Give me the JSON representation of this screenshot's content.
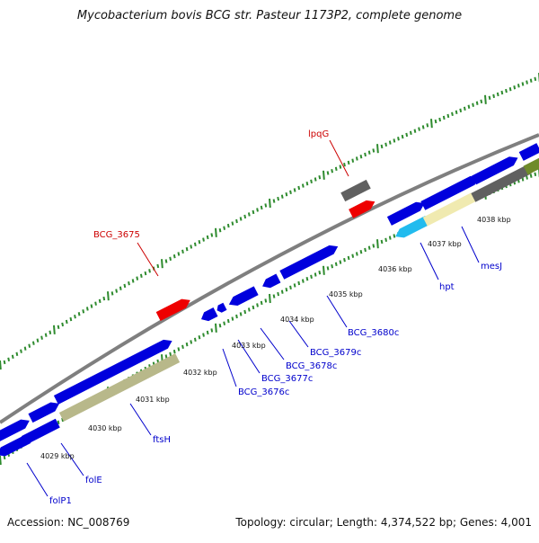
{
  "title": "Mycobacterium bovis BCG str. Pasteur 1173P2, complete genome",
  "footer": {
    "accession": "Accession: NC_008769",
    "summary": "Topology: circular; Length: 4,374,522 bp; Genes: 4,001"
  },
  "colors": {
    "backbone": "#7f7f7f",
    "gene_blue": "#0000dd",
    "gene_red": "#ee0000",
    "gene_gray": "#606060",
    "gene_cyan": "#22bbee",
    "gene_khaki": "#b8b88a",
    "gene_pale": "#f0eab0",
    "gene_olive": "#6e8b2a",
    "tick_green": "#2e8b2e",
    "label_blue": "#0000cc",
    "label_red": "#cc0000"
  },
  "ticks": [
    "4029 kbp",
    "4030 kbp",
    "4031 kbp",
    "4032 kbp",
    "4033 kbp",
    "4034 kbp",
    "4035 kbp",
    "4036 kbp",
    "4037 kbp",
    "4038 kbp"
  ],
  "labels": {
    "lpqG": "lpqG",
    "BCG_3675": "BCG_3675",
    "hpt": "hpt",
    "mesJ": "mesJ",
    "BCG_3680c": "BCG_3680c",
    "BCG_3679c": "BCG_3679c",
    "BCG_3678c": "BCG_3678c",
    "BCG_3677c": "BCG_3677c",
    "BCG_3676c": "BCG_3676c",
    "ftsH": "ftsH",
    "folE": "folE",
    "folP1": "folP1"
  }
}
